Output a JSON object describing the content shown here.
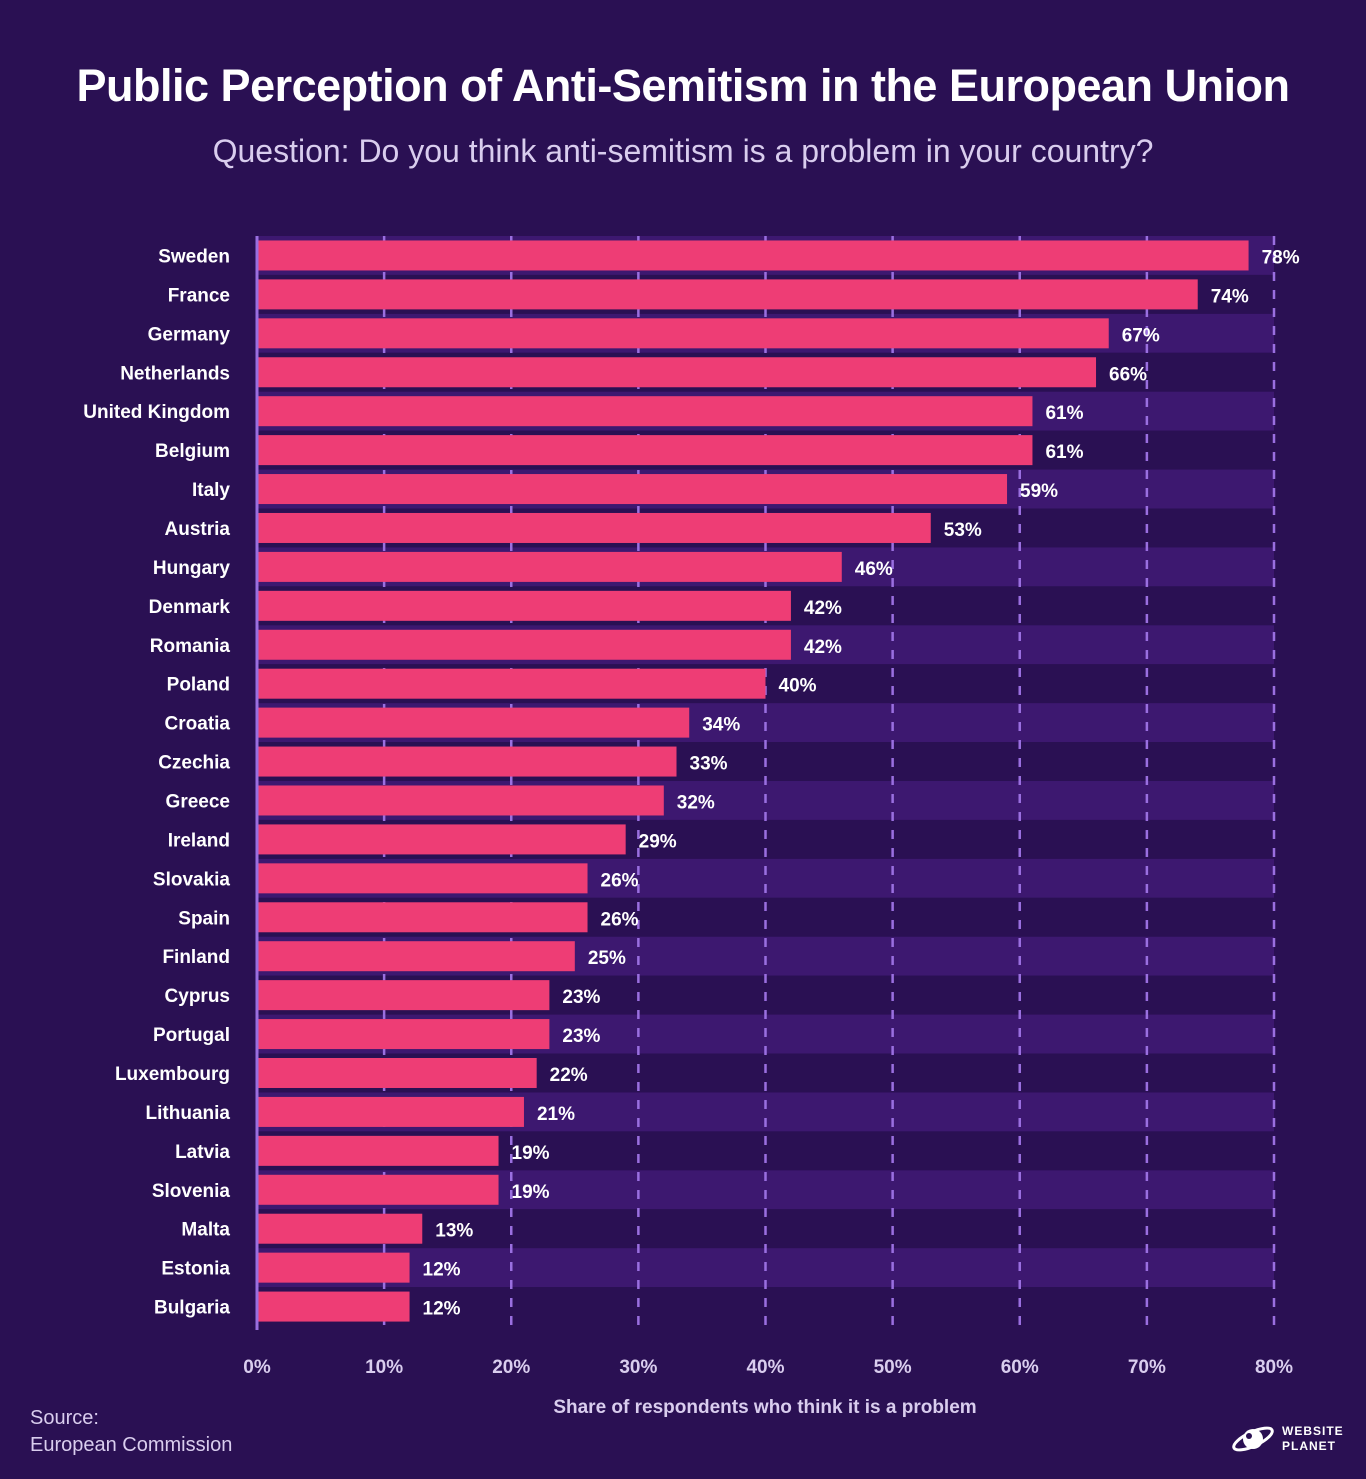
{
  "header": {
    "title": "Public Perception of Anti-Semitism in the European Union",
    "subtitle": "Question: Do you think anti-semitism is a problem in your country?"
  },
  "colors": {
    "background": "#2a1053",
    "band_light": "#3d1870",
    "band_dark": "#2a1053",
    "bar": "#ee3d75",
    "grid": "#9a6fe0",
    "axis": "#9a6fe0",
    "text": "#ffffff",
    "muted_text": "#d9cdee"
  },
  "chart_data": {
    "type": "bar",
    "orientation": "horizontal",
    "categories": [
      "Sweden",
      "France",
      "Germany",
      "Netherlands",
      "United Kingdom",
      "Belgium",
      "Italy",
      "Austria",
      "Hungary",
      "Denmark",
      "Romania",
      "Poland",
      "Croatia",
      "Czechia",
      "Greece",
      "Ireland",
      "Slovakia",
      "Spain",
      "Finland",
      "Cyprus",
      "Portugal",
      "Luxembourg",
      "Lithuania",
      "Latvia",
      "Slovenia",
      "Malta",
      "Estonia",
      "Bulgaria"
    ],
    "values": [
      78,
      74,
      67,
      66,
      61,
      61,
      59,
      53,
      46,
      42,
      42,
      40,
      34,
      33,
      32,
      29,
      26,
      26,
      25,
      23,
      23,
      22,
      21,
      19,
      19,
      13,
      12,
      12
    ],
    "value_suffix": "%",
    "xlim": [
      0,
      80
    ],
    "xticks": [
      0,
      10,
      20,
      30,
      40,
      50,
      60,
      70,
      80
    ],
    "xtick_labels": [
      "0%",
      "10%",
      "20%",
      "30%",
      "40%",
      "50%",
      "60%",
      "70%",
      "80%"
    ],
    "xlabel": "Share of respondents who think it is a problem",
    "ylabel": "",
    "grid": true,
    "grid_style": "dashed-vertical"
  },
  "footer": {
    "source_label": "Source:",
    "source_name": "European Commission",
    "logo_line1": "WEBSITE",
    "logo_line2": "PLANET"
  }
}
